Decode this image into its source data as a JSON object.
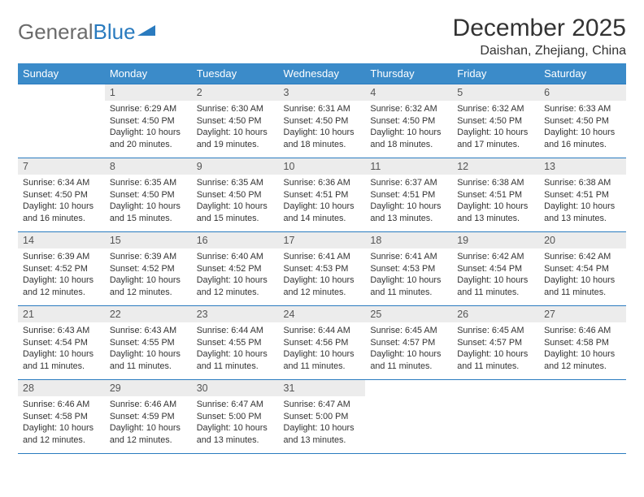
{
  "logo": {
    "text1": "General",
    "text2": "Blue"
  },
  "title": "December 2025",
  "location": "Daishan, Zhejiang, China",
  "colors": {
    "header_bg": "#3b8bc9",
    "header_text": "#ffffff",
    "daynum_bg": "#ececec",
    "border": "#2a7bbf",
    "text": "#333333",
    "logo_gray": "#6b6b6b",
    "logo_blue": "#2a7bbf"
  },
  "weekdays": [
    "Sunday",
    "Monday",
    "Tuesday",
    "Wednesday",
    "Thursday",
    "Friday",
    "Saturday"
  ],
  "weeks": [
    [
      {
        "empty": true
      },
      {
        "day": "1",
        "sunrise": "Sunrise: 6:29 AM",
        "sunset": "Sunset: 4:50 PM",
        "daylight": "Daylight: 10 hours and 20 minutes."
      },
      {
        "day": "2",
        "sunrise": "Sunrise: 6:30 AM",
        "sunset": "Sunset: 4:50 PM",
        "daylight": "Daylight: 10 hours and 19 minutes."
      },
      {
        "day": "3",
        "sunrise": "Sunrise: 6:31 AM",
        "sunset": "Sunset: 4:50 PM",
        "daylight": "Daylight: 10 hours and 18 minutes."
      },
      {
        "day": "4",
        "sunrise": "Sunrise: 6:32 AM",
        "sunset": "Sunset: 4:50 PM",
        "daylight": "Daylight: 10 hours and 18 minutes."
      },
      {
        "day": "5",
        "sunrise": "Sunrise: 6:32 AM",
        "sunset": "Sunset: 4:50 PM",
        "daylight": "Daylight: 10 hours and 17 minutes."
      },
      {
        "day": "6",
        "sunrise": "Sunrise: 6:33 AM",
        "sunset": "Sunset: 4:50 PM",
        "daylight": "Daylight: 10 hours and 16 minutes."
      }
    ],
    [
      {
        "day": "7",
        "sunrise": "Sunrise: 6:34 AM",
        "sunset": "Sunset: 4:50 PM",
        "daylight": "Daylight: 10 hours and 16 minutes."
      },
      {
        "day": "8",
        "sunrise": "Sunrise: 6:35 AM",
        "sunset": "Sunset: 4:50 PM",
        "daylight": "Daylight: 10 hours and 15 minutes."
      },
      {
        "day": "9",
        "sunrise": "Sunrise: 6:35 AM",
        "sunset": "Sunset: 4:50 PM",
        "daylight": "Daylight: 10 hours and 15 minutes."
      },
      {
        "day": "10",
        "sunrise": "Sunrise: 6:36 AM",
        "sunset": "Sunset: 4:51 PM",
        "daylight": "Daylight: 10 hours and 14 minutes."
      },
      {
        "day": "11",
        "sunrise": "Sunrise: 6:37 AM",
        "sunset": "Sunset: 4:51 PM",
        "daylight": "Daylight: 10 hours and 13 minutes."
      },
      {
        "day": "12",
        "sunrise": "Sunrise: 6:38 AM",
        "sunset": "Sunset: 4:51 PM",
        "daylight": "Daylight: 10 hours and 13 minutes."
      },
      {
        "day": "13",
        "sunrise": "Sunrise: 6:38 AM",
        "sunset": "Sunset: 4:51 PM",
        "daylight": "Daylight: 10 hours and 13 minutes."
      }
    ],
    [
      {
        "day": "14",
        "sunrise": "Sunrise: 6:39 AM",
        "sunset": "Sunset: 4:52 PM",
        "daylight": "Daylight: 10 hours and 12 minutes."
      },
      {
        "day": "15",
        "sunrise": "Sunrise: 6:39 AM",
        "sunset": "Sunset: 4:52 PM",
        "daylight": "Daylight: 10 hours and 12 minutes."
      },
      {
        "day": "16",
        "sunrise": "Sunrise: 6:40 AM",
        "sunset": "Sunset: 4:52 PM",
        "daylight": "Daylight: 10 hours and 12 minutes."
      },
      {
        "day": "17",
        "sunrise": "Sunrise: 6:41 AM",
        "sunset": "Sunset: 4:53 PM",
        "daylight": "Daylight: 10 hours and 12 minutes."
      },
      {
        "day": "18",
        "sunrise": "Sunrise: 6:41 AM",
        "sunset": "Sunset: 4:53 PM",
        "daylight": "Daylight: 10 hours and 11 minutes."
      },
      {
        "day": "19",
        "sunrise": "Sunrise: 6:42 AM",
        "sunset": "Sunset: 4:54 PM",
        "daylight": "Daylight: 10 hours and 11 minutes."
      },
      {
        "day": "20",
        "sunrise": "Sunrise: 6:42 AM",
        "sunset": "Sunset: 4:54 PM",
        "daylight": "Daylight: 10 hours and 11 minutes."
      }
    ],
    [
      {
        "day": "21",
        "sunrise": "Sunrise: 6:43 AM",
        "sunset": "Sunset: 4:54 PM",
        "daylight": "Daylight: 10 hours and 11 minutes."
      },
      {
        "day": "22",
        "sunrise": "Sunrise: 6:43 AM",
        "sunset": "Sunset: 4:55 PM",
        "daylight": "Daylight: 10 hours and 11 minutes."
      },
      {
        "day": "23",
        "sunrise": "Sunrise: 6:44 AM",
        "sunset": "Sunset: 4:55 PM",
        "daylight": "Daylight: 10 hours and 11 minutes."
      },
      {
        "day": "24",
        "sunrise": "Sunrise: 6:44 AM",
        "sunset": "Sunset: 4:56 PM",
        "daylight": "Daylight: 10 hours and 11 minutes."
      },
      {
        "day": "25",
        "sunrise": "Sunrise: 6:45 AM",
        "sunset": "Sunset: 4:57 PM",
        "daylight": "Daylight: 10 hours and 11 minutes."
      },
      {
        "day": "26",
        "sunrise": "Sunrise: 6:45 AM",
        "sunset": "Sunset: 4:57 PM",
        "daylight": "Daylight: 10 hours and 11 minutes."
      },
      {
        "day": "27",
        "sunrise": "Sunrise: 6:46 AM",
        "sunset": "Sunset: 4:58 PM",
        "daylight": "Daylight: 10 hours and 12 minutes."
      }
    ],
    [
      {
        "day": "28",
        "sunrise": "Sunrise: 6:46 AM",
        "sunset": "Sunset: 4:58 PM",
        "daylight": "Daylight: 10 hours and 12 minutes."
      },
      {
        "day": "29",
        "sunrise": "Sunrise: 6:46 AM",
        "sunset": "Sunset: 4:59 PM",
        "daylight": "Daylight: 10 hours and 12 minutes."
      },
      {
        "day": "30",
        "sunrise": "Sunrise: 6:47 AM",
        "sunset": "Sunset: 5:00 PM",
        "daylight": "Daylight: 10 hours and 13 minutes."
      },
      {
        "day": "31",
        "sunrise": "Sunrise: 6:47 AM",
        "sunset": "Sunset: 5:00 PM",
        "daylight": "Daylight: 10 hours and 13 minutes."
      },
      {
        "empty": true
      },
      {
        "empty": true
      },
      {
        "empty": true
      }
    ]
  ]
}
